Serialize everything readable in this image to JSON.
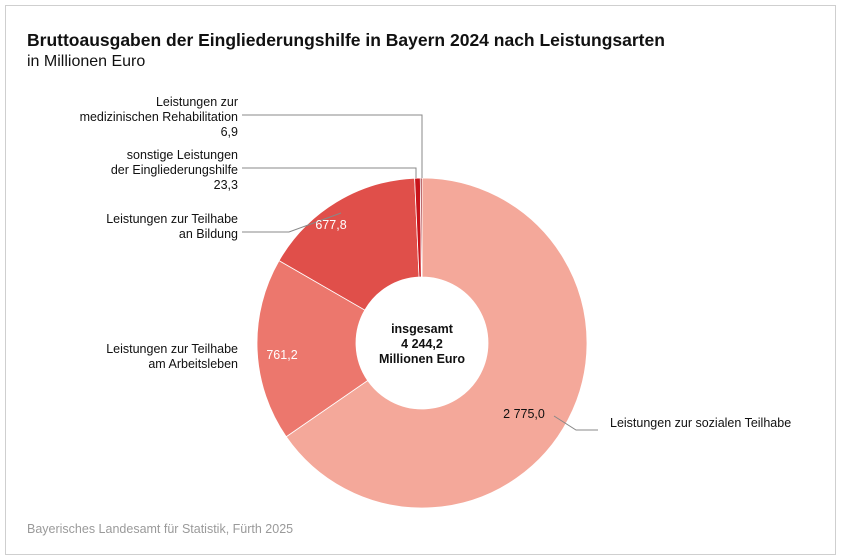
{
  "title": "Bruttoausgaben der Eingliederungshilfe in Bayern 2024 nach Leistungsarten",
  "subtitle": "in Millionen Euro",
  "source": "Bayerisches Landesamt für Statistik, Fürth 2025",
  "chart_data": {
    "type": "pie",
    "donut": true,
    "title": "Bruttoausgaben der Eingliederungshilfe in Bayern 2024 nach Leistungsarten",
    "unit": "Millionen Euro",
    "center_label": [
      "insgesamt",
      "4 244,2",
      "Millionen Euro"
    ],
    "slices": [
      {
        "name": "Leistungen zur sozialen Teilhabe",
        "value": 2775.0,
        "label": "2 775,0",
        "color": "#f4a89a"
      },
      {
        "name": "Leistungen zur Teilhabe am Arbeitsleben",
        "value": 761.2,
        "label": "761,2",
        "color": "#ec776d"
      },
      {
        "name": "Leistungen zur Teilhabe an Bildung",
        "value": 677.8,
        "label": "677,8",
        "color": "#e04f4a"
      },
      {
        "name": "sonstige Leistungen der Eingliederungshilfe",
        "value": 23.3,
        "label": "23,3",
        "color": "#c8141b"
      },
      {
        "name": "Leistungen zur medizinischen Rehabilitation",
        "value": 6.9,
        "label": "6,9",
        "color": "#8e0a0f"
      }
    ]
  },
  "labels": {
    "sozial": "Leistungen zur sozialen Teilhabe",
    "arbeit": [
      "Leistungen zur Teilhabe",
      "am Arbeitsleben"
    ],
    "bildung": [
      "Leistungen zur Teilhabe",
      "an Bildung"
    ],
    "sonstige": [
      "sonstige Leistungen",
      "der Eingliederungshilfe",
      "23,3"
    ],
    "med": [
      "Leistungen zur",
      "medizinischen Rehabilitation",
      "6,9"
    ]
  }
}
